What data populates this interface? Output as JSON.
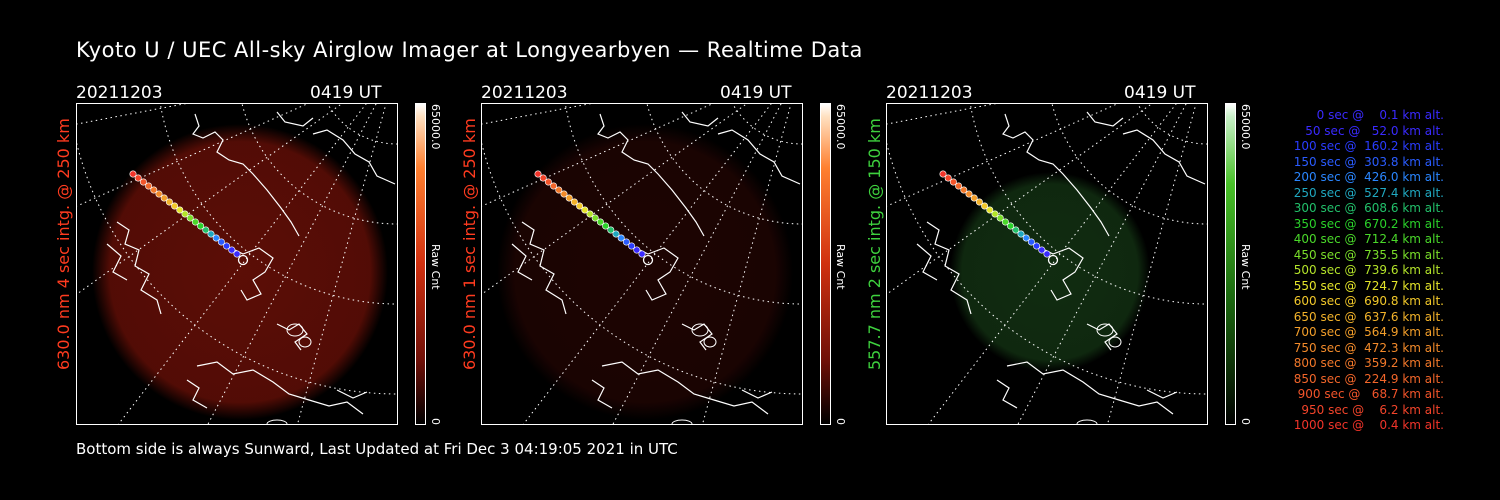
{
  "title": "Kyoto U / UEC All-sky Airglow Imager at Longyearbyen — Realtime Data",
  "footer": "Bottom side is always Sunward, Last Updated at Fri Dec  3 04:19:05 2021 in UTC",
  "colors": {
    "red_label": "#ff3b1f",
    "green_label": "#3ed13e",
    "background": "#000000"
  },
  "panels": [
    {
      "date": "20211203",
      "time": "0419 UT",
      "label": "630.0 nm 4 sec intg. @ 250 km",
      "label_color": "#ff3b1f",
      "cbar_max": "65000.0",
      "cbar_min": "0",
      "cbar_unit": "Raw Cnt",
      "tint": "#7a1208",
      "glow_strength": 0.75,
      "colorbar": "red"
    },
    {
      "date": "20211203",
      "time": "0419 UT",
      "label": "630.0 nm 1 sec intg. @ 250 km",
      "label_color": "#ff3b1f",
      "cbar_max": "65000.0",
      "cbar_min": "0",
      "cbar_unit": "Raw Cnt",
      "tint": "#3a0805",
      "glow_strength": 0.5,
      "colorbar": "red"
    },
    {
      "date": "20211203",
      "time": "0419 UT",
      "label": "557.7 nm 2 sec intg. @ 150 km",
      "label_color": "#3ed13e",
      "cbar_max": "65000.0",
      "cbar_min": "0",
      "cbar_unit": "Raw Cnt",
      "tint": "#1c4a1c",
      "glow_strength": 0.6,
      "colorbar": "green"
    }
  ],
  "legend": [
    {
      "text": "   0 sec @    0.1 km alt.",
      "color": "#3a2aff"
    },
    {
      "text": "  50 sec @   52.0 km alt.",
      "color": "#3a2aff"
    },
    {
      "text": " 100 sec @  160.2 km alt.",
      "color": "#2a3cff"
    },
    {
      "text": " 150 sec @  303.8 km alt.",
      "color": "#2a5cff"
    },
    {
      "text": " 200 sec @  426.0 km alt.",
      "color": "#2a86ff"
    },
    {
      "text": " 250 sec @  527.4 km alt.",
      "color": "#20a8c0"
    },
    {
      "text": " 300 sec @  608.6 km alt.",
      "color": "#22c06a"
    },
    {
      "text": " 350 sec @  670.2 km alt.",
      "color": "#2ad12a"
    },
    {
      "text": " 400 sec @  712.4 km alt.",
      "color": "#4ad82a"
    },
    {
      "text": " 450 sec @  735.5 km alt.",
      "color": "#7ade2a"
    },
    {
      "text": " 500 sec @  739.6 km alt.",
      "color": "#b4e42a"
    },
    {
      "text": " 550 sec @  724.7 km alt.",
      "color": "#e4e42a"
    },
    {
      "text": " 600 sec @  690.8 km alt.",
      "color": "#f2c82a"
    },
    {
      "text": " 650 sec @  637.6 km alt.",
      "color": "#f2b22a"
    },
    {
      "text": " 700 sec @  564.9 km alt.",
      "color": "#f29e2a"
    },
    {
      "text": " 750 sec @  472.3 km alt.",
      "color": "#f28a2a"
    },
    {
      "text": " 800 sec @  359.2 km alt.",
      "color": "#f2782a"
    },
    {
      "text": " 850 sec @  224.9 km alt.",
      "color": "#f2662a"
    },
    {
      "text": " 900 sec @   68.7 km alt.",
      "color": "#f2542a"
    },
    {
      "text": " 950 sec @    6.2 km alt.",
      "color": "#f2442a"
    },
    {
      "text": "1000 sec @    0.4 km alt.",
      "color": "#f2342a"
    }
  ]
}
